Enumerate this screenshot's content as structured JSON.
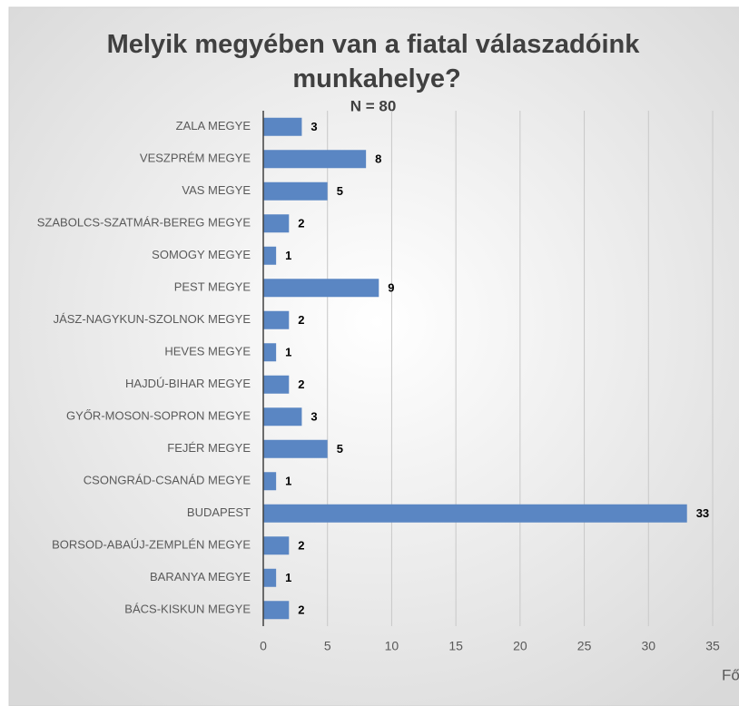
{
  "chart_data": {
    "type": "bar",
    "orientation": "horizontal",
    "title": "Melyik megyében van a fiatal válaszadóink munkahelye?",
    "subtitle": "N = 80",
    "x_label": "Fő",
    "categories": [
      "ZALA MEGYE",
      "VESZPRÉM MEGYE",
      "VAS MEGYE",
      "SZABOLCS-SZATMÁR-BEREG MEGYE",
      "SOMOGY MEGYE",
      "PEST MEGYE",
      "JÁSZ-NAGYKUN-SZOLNOK MEGYE",
      "HEVES MEGYE",
      "HAJDÚ-BIHAR MEGYE",
      "GYŐR-MOSON-SOPRON MEGYE",
      "FEJÉR MEGYE",
      "CSONGRÁD-CSANÁD MEGYE",
      "BUDAPEST",
      "BORSOD-ABAÚJ-ZEMPLÉN MEGYE",
      "BARANYA MEGYE",
      "BÁCS-KISKUN MEGYE"
    ],
    "values": [
      3,
      8,
      5,
      2,
      1,
      9,
      2,
      1,
      2,
      3,
      5,
      1,
      33,
      2,
      1,
      2
    ],
    "color": "#5a86c3",
    "xlim": [
      0,
      35
    ],
    "xticks": [
      0,
      5,
      10,
      15,
      20,
      25,
      30,
      35
    ],
    "grid": true
  }
}
